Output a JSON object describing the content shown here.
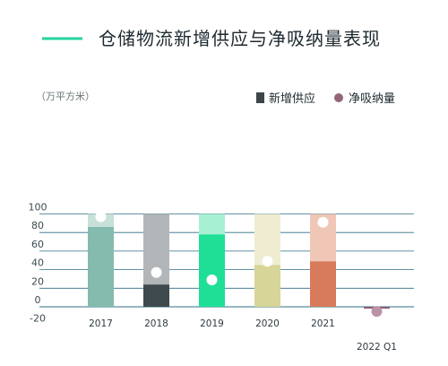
{
  "chart_data": {
    "type": "bar",
    "title": "仓储物流新增供应与净吸纳量表现",
    "unit_label": "（万平方米）",
    "categories": [
      "2017",
      "2018",
      "2019",
      "2020",
      "2021",
      "2022 Q1"
    ],
    "series": [
      {
        "name": "新增供应",
        "type": "bar",
        "values": [
          86,
          24,
          78,
          45,
          49,
          -2
        ]
      },
      {
        "name": "净吸纳量",
        "type": "scatter",
        "values": [
          97,
          37,
          29,
          49,
          91,
          -5
        ]
      }
    ],
    "bar_total": [
      100,
      100,
      100,
      100,
      100,
      null
    ],
    "yticks": [
      100,
      80,
      60,
      40,
      20,
      0,
      -20
    ],
    "ylim": [
      -20,
      100
    ],
    "grid": true,
    "legend_position": "top-right",
    "colors": {
      "accent_line": "#26d3a0",
      "legend_bar": "#3c4648",
      "legend_dot": "#946579",
      "bars_dark": [
        "#84bbae",
        "#3e4a4d",
        "#1fdf96",
        "#d8d598",
        "#d87a5c",
        "#916071"
      ],
      "bars_light": [
        "#c8e0da",
        "#b2b6b9",
        "#a8f0d4",
        "#efecd2",
        "#f0c7b7",
        null
      ],
      "dot_white": "#ffffff",
      "dot_negative": "#bb93a6",
      "grid": "#2f6f86"
    }
  }
}
